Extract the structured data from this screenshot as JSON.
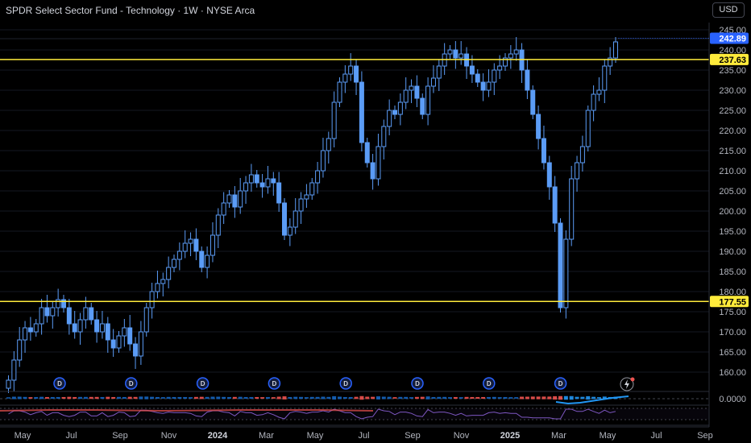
{
  "header": {
    "title": "SPDR Select Sector Fund - Technology · 1W · NYSE Arca",
    "currency_button": "USD"
  },
  "colors": {
    "background": "#000000",
    "candle": "#5b9cf6",
    "level_line": "#ffeb3b",
    "current_price_badge": "#2962ff",
    "level_badge": "#ffeb3b",
    "dividend_marker": "#2962ff",
    "indicator_positive": "#2196f3",
    "indicator_negative": "#ef5350",
    "rsi_line": "#7e57c2"
  },
  "price_axis": {
    "min": 155,
    "max": 247,
    "ticks": [
      "245.00",
      "240.00",
      "235.00",
      "230.00",
      "225.00",
      "220.00",
      "215.00",
      "210.00",
      "205.00",
      "200.00",
      "195.00",
      "190.00",
      "185.00",
      "180.00",
      "175.00",
      "170.00",
      "165.00",
      "160.00"
    ]
  },
  "time_axis": {
    "labels": [
      {
        "text": "May",
        "bold": false
      },
      {
        "text": "Jul",
        "bold": false
      },
      {
        "text": "Sep",
        "bold": false
      },
      {
        "text": "Nov",
        "bold": false
      },
      {
        "text": "2024",
        "bold": true
      },
      {
        "text": "Mar",
        "bold": false
      },
      {
        "text": "May",
        "bold": false
      },
      {
        "text": "Jul",
        "bold": false
      },
      {
        "text": "Sep",
        "bold": false
      },
      {
        "text": "Nov",
        "bold": false
      },
      {
        "text": "2025",
        "bold": true
      },
      {
        "text": "Mar",
        "bold": false
      },
      {
        "text": "May",
        "bold": false
      },
      {
        "text": "Jul",
        "bold": false
      },
      {
        "text": "Sep",
        "bold": false
      }
    ]
  },
  "price_badges": {
    "current": "242.89",
    "upper_level": "237.63",
    "lower_level": "177.55"
  },
  "levels": [
    237.63,
    177.55
  ],
  "indicator_axis": {
    "value_label": "0.0000"
  },
  "dividend_marker_label": "D",
  "dividend_count": 8,
  "chart_data": {
    "type": "candlestick",
    "closes": [
      158,
      163,
      168,
      171,
      170,
      172,
      176,
      174,
      176,
      178,
      176,
      172,
      170,
      173,
      176,
      173,
      170,
      172,
      168,
      166,
      169,
      171,
      167,
      164,
      170,
      176,
      180,
      182,
      183,
      186,
      188,
      190,
      192,
      193,
      190,
      186,
      189,
      194,
      199,
      202,
      204,
      201,
      205,
      207,
      209,
      207,
      206,
      208,
      207,
      202,
      194,
      196,
      200,
      203,
      204,
      207,
      210,
      215,
      218,
      227,
      232,
      234,
      236,
      232,
      217,
      212,
      208,
      216,
      221,
      225,
      224,
      227,
      230,
      231,
      228,
      224,
      231,
      233,
      236,
      239,
      240,
      238,
      239,
      236,
      234,
      232,
      230,
      232,
      235,
      236,
      238,
      239,
      240,
      235,
      230,
      224,
      218,
      212,
      206,
      197,
      176,
      193,
      208,
      212,
      216,
      225,
      229,
      230,
      236,
      238,
      242
    ],
    "level_lines": [
      237.63,
      177.55
    ],
    "last_price": 242.89
  }
}
